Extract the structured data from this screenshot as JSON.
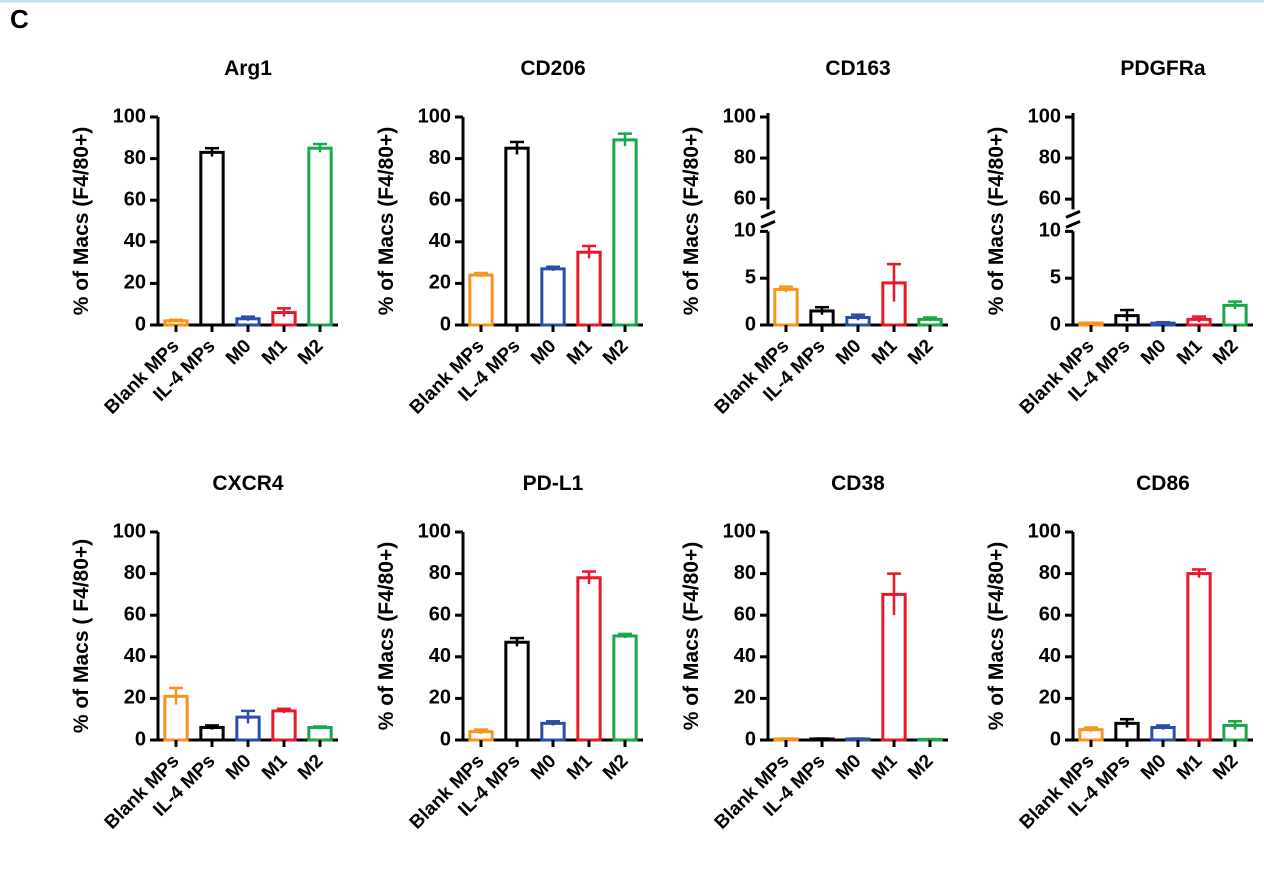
{
  "panel_label": "C",
  "chart_data": [
    {
      "type": "bar",
      "title": "Arg1",
      "y_label": "% of Macs (F4/80+)",
      "categories": [
        "Blank MPs",
        "IL-4 MPs",
        "M0",
        "M1",
        "M2"
      ],
      "values": [
        2,
        83,
        3,
        6,
        85
      ],
      "errors": [
        0.5,
        2,
        1,
        2,
        2
      ],
      "colors": [
        "#f7941d",
        "#000000",
        "#2a4fa8",
        "#e8182a",
        "#1aa64a"
      ],
      "ylim": [
        0,
        100
      ],
      "yticks": [
        0,
        20,
        40,
        60,
        80,
        100
      ]
    },
    {
      "type": "bar",
      "title": "CD206",
      "y_label": "% of Macs (F4/80+)",
      "categories": [
        "Blank MPs",
        "IL-4 MPs",
        "M0",
        "M1",
        "M2"
      ],
      "values": [
        24,
        85,
        27,
        35,
        89
      ],
      "errors": [
        1,
        3,
        1,
        3,
        3
      ],
      "colors": [
        "#f7941d",
        "#000000",
        "#2a4fa8",
        "#e8182a",
        "#1aa64a"
      ],
      "ylim": [
        0,
        100
      ],
      "yticks": [
        0,
        20,
        40,
        60,
        80,
        100
      ]
    },
    {
      "type": "bar",
      "title": "CD163",
      "y_label": "% of Macs (F4/80+)",
      "categories": [
        "Blank MPs",
        "IL-4 MPs",
        "M0",
        "M1",
        "M2"
      ],
      "values": [
        3.8,
        1.5,
        0.8,
        4.5,
        0.6
      ],
      "errors": [
        0.3,
        0.4,
        0.3,
        2,
        0.2
      ],
      "colors": [
        "#f7941d",
        "#000000",
        "#2a4fa8",
        "#e8182a",
        "#1aa64a"
      ],
      "ylim": [
        0,
        100
      ],
      "ybreak": [
        10,
        55
      ],
      "yticks": [
        0,
        5,
        10,
        60,
        80,
        100
      ]
    },
    {
      "type": "bar",
      "title": "PDGFRa",
      "y_label": "% of Macs (F4/80+)",
      "categories": [
        "Blank MPs",
        "IL-4 MPs",
        "M0",
        "M1",
        "M2"
      ],
      "values": [
        0.2,
        1,
        0.2,
        0.6,
        2.1
      ],
      "errors": [
        0.05,
        0.6,
        0.1,
        0.3,
        0.4
      ],
      "colors": [
        "#f7941d",
        "#000000",
        "#2a4fa8",
        "#e8182a",
        "#1aa64a"
      ],
      "ylim": [
        0,
        100
      ],
      "ybreak": [
        10,
        55
      ],
      "yticks": [
        0,
        5,
        10,
        60,
        80,
        100
      ]
    },
    {
      "type": "bar",
      "title": "CXCR4",
      "y_label": "% of Macs ( F4/80+)",
      "categories": [
        "Blank MPs",
        "IL-4 MPs",
        "M0",
        "M1",
        "M2"
      ],
      "values": [
        21,
        6,
        11,
        14,
        6
      ],
      "errors": [
        4,
        1,
        3,
        1,
        0.5
      ],
      "colors": [
        "#f7941d",
        "#000000",
        "#2a4fa8",
        "#e8182a",
        "#1aa64a"
      ],
      "ylim": [
        0,
        100
      ],
      "yticks": [
        0,
        20,
        40,
        60,
        80,
        100
      ]
    },
    {
      "type": "bar",
      "title": "PD-L1",
      "y_label": "% of Macs (F4/80+)",
      "categories": [
        "Blank MPs",
        "IL-4 MPs",
        "M0",
        "M1",
        "M2"
      ],
      "values": [
        4,
        47,
        8,
        78,
        50
      ],
      "errors": [
        1,
        2,
        1,
        3,
        1
      ],
      "colors": [
        "#f7941d",
        "#000000",
        "#2a4fa8",
        "#e8182a",
        "#1aa64a"
      ],
      "ylim": [
        0,
        100
      ],
      "yticks": [
        0,
        20,
        40,
        60,
        80,
        100
      ]
    },
    {
      "type": "bar",
      "title": "CD38",
      "y_label": "% of Macs (F4/80+)",
      "categories": [
        "Blank MPs",
        "IL-4 MPs",
        "M0",
        "M1",
        "M2"
      ],
      "values": [
        0.5,
        0.5,
        0.5,
        70,
        0.3
      ],
      "errors": [
        0.2,
        0.2,
        0.2,
        10,
        0.1
      ],
      "colors": [
        "#f7941d",
        "#000000",
        "#2a4fa8",
        "#e8182a",
        "#1aa64a"
      ],
      "ylim": [
        0,
        100
      ],
      "yticks": [
        0,
        20,
        40,
        60,
        80,
        100
      ]
    },
    {
      "type": "bar",
      "title": "CD86",
      "y_label": "% of Macs (F4/80+)",
      "categories": [
        "Blank MPs",
        "IL-4 MPs",
        "M0",
        "M1",
        "M2"
      ],
      "values": [
        5,
        8,
        6,
        80,
        7
      ],
      "errors": [
        1,
        2,
        1,
        2,
        2
      ],
      "colors": [
        "#f7941d",
        "#000000",
        "#2a4fa8",
        "#e8182a",
        "#1aa64a"
      ],
      "ylim": [
        0,
        100
      ],
      "yticks": [
        0,
        20,
        40,
        60,
        80,
        100
      ]
    }
  ]
}
